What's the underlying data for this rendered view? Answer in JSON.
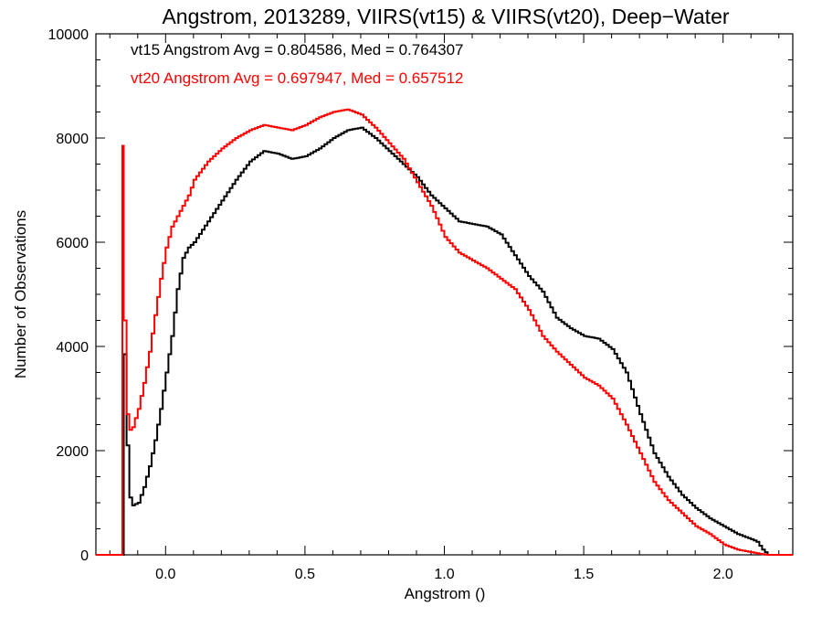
{
  "chart_data": {
    "type": "line",
    "title": "Angstrom, 2013289, VIIRS(vt15) & VIIRS(vt20), Deep−Water",
    "xlabel": "Angstrom ()",
    "ylabel": "Number of Observations",
    "xlim": [
      -0.25,
      2.25
    ],
    "ylim": [
      0,
      10000
    ],
    "xticks": [
      0.0,
      0.5,
      1.0,
      1.5,
      2.0
    ],
    "xtick_labels": [
      "0.0",
      "0.5",
      "1.0",
      "1.5",
      "2.0"
    ],
    "yticks": [
      0,
      2000,
      4000,
      6000,
      8000,
      10000
    ],
    "ytick_labels": [
      "0",
      "2000",
      "4000",
      "6000",
      "8000",
      "10000"
    ],
    "grid": false,
    "annotations": [
      {
        "text": "vt15 Angstrom Avg = 0.804586, Med = 0.764307",
        "color": "#000000"
      },
      {
        "text": "vt20 Angstrom Avg = 0.697947, Med = 0.657512",
        "color": "#ff0000"
      }
    ],
    "series": [
      {
        "color": "#000000",
        "x": [
          -0.25,
          -0.16,
          -0.15,
          -0.14,
          -0.13,
          -0.12,
          -0.1,
          -0.08,
          -0.06,
          -0.04,
          -0.02,
          0.0,
          0.02,
          0.04,
          0.06,
          0.08,
          0.1,
          0.15,
          0.2,
          0.25,
          0.3,
          0.35,
          0.4,
          0.45,
          0.5,
          0.55,
          0.6,
          0.65,
          0.7,
          0.75,
          0.8,
          0.85,
          0.9,
          0.95,
          1.0,
          1.05,
          1.1,
          1.15,
          1.2,
          1.25,
          1.3,
          1.35,
          1.4,
          1.45,
          1.5,
          1.55,
          1.6,
          1.65,
          1.7,
          1.75,
          1.8,
          1.85,
          1.9,
          1.95,
          2.0,
          2.05,
          2.1,
          2.12,
          2.14,
          2.16,
          2.25
        ],
        "values": [
          0,
          0,
          3850,
          2100,
          1100,
          950,
          1000,
          1300,
          1700,
          2200,
          2800,
          3500,
          4200,
          5100,
          5700,
          5900,
          6000,
          6400,
          6800,
          7200,
          7550,
          7750,
          7700,
          7600,
          7650,
          7800,
          8000,
          8150,
          8200,
          8000,
          7750,
          7500,
          7250,
          6900,
          6650,
          6400,
          6350,
          6300,
          6150,
          5750,
          5350,
          5050,
          4550,
          4350,
          4200,
          4150,
          3950,
          3500,
          2700,
          1950,
          1500,
          1150,
          900,
          700,
          550,
          400,
          300,
          250,
          100,
          0,
          0
        ]
      },
      {
        "color": "#ff0000",
        "x": [
          -0.25,
          -0.16,
          -0.155,
          -0.15,
          -0.14,
          -0.13,
          -0.12,
          -0.1,
          -0.08,
          -0.06,
          -0.04,
          -0.02,
          0.0,
          0.02,
          0.04,
          0.06,
          0.08,
          0.1,
          0.15,
          0.2,
          0.25,
          0.3,
          0.35,
          0.4,
          0.45,
          0.5,
          0.55,
          0.6,
          0.65,
          0.7,
          0.75,
          0.8,
          0.85,
          0.9,
          0.95,
          1.0,
          1.05,
          1.1,
          1.15,
          1.2,
          1.25,
          1.3,
          1.35,
          1.4,
          1.45,
          1.5,
          1.55,
          1.6,
          1.65,
          1.7,
          1.75,
          1.8,
          1.85,
          1.9,
          1.95,
          2.0,
          2.05,
          2.1,
          2.12,
          2.14,
          2.16,
          2.25
        ],
        "values": [
          0,
          0,
          7850,
          4500,
          2700,
          2400,
          2450,
          2800,
          3300,
          3900,
          4600,
          5300,
          5900,
          6300,
          6500,
          6700,
          6900,
          7200,
          7550,
          7800,
          8000,
          8150,
          8250,
          8200,
          8150,
          8250,
          8400,
          8500,
          8550,
          8450,
          8200,
          7900,
          7600,
          7150,
          6700,
          6100,
          5800,
          5650,
          5500,
          5300,
          5100,
          4700,
          4200,
          3900,
          3650,
          3400,
          3250,
          3000,
          2500,
          1950,
          1400,
          1050,
          800,
          550,
          400,
          200,
          100,
          50,
          30,
          10,
          0,
          0
        ]
      }
    ]
  }
}
